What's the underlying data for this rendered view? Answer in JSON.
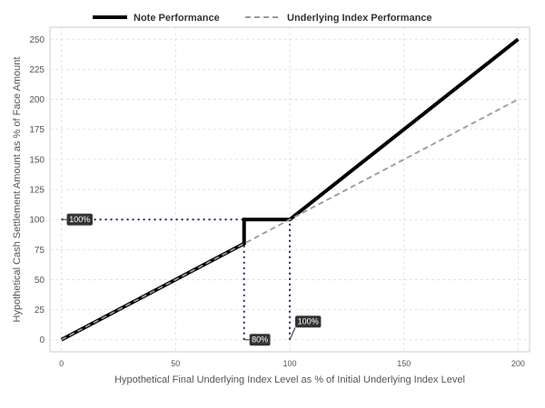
{
  "chart_data": {
    "type": "line",
    "title": "",
    "xlabel": "Hypothetical Final Underlying Index Level as % of Initial Underlying Index Level",
    "ylabel": "Hypothetical Cash Settlement Amount as % of Face Amount",
    "xlim": [
      -5,
      205
    ],
    "ylim": [
      -10,
      260
    ],
    "xticks": [
      0,
      50,
      100,
      150,
      200
    ],
    "yticks": [
      0,
      25,
      50,
      75,
      100,
      125,
      150,
      175,
      200,
      225,
      250
    ],
    "grid": true,
    "legend_position": "top",
    "series": [
      {
        "name": "Note Performance",
        "style": "solid",
        "color": "#000000",
        "x": [
          0,
          80,
          80,
          100,
          200
        ],
        "y": [
          0,
          80,
          100,
          100,
          250
        ]
      },
      {
        "name": "Underlying Index Performance",
        "style": "dashed",
        "color": "#999999",
        "x": [
          0,
          200
        ],
        "y": [
          0,
          200
        ]
      }
    ],
    "reference_lines": [
      {
        "x": [
          0,
          80
        ],
        "y": [
          100,
          100
        ]
      },
      {
        "x": [
          80,
          80
        ],
        "y": [
          0,
          100
        ]
      },
      {
        "x": [
          100,
          100
        ],
        "y": [
          0,
          100
        ]
      }
    ],
    "annotations": [
      {
        "text": "100%",
        "x": 0,
        "y": 100
      },
      {
        "text": "80%",
        "x": 80,
        "y": 0
      },
      {
        "text": "100%",
        "x": 100,
        "y": 0
      }
    ],
    "colors": {
      "reference": "#1f2a5a",
      "callout_bg": "#333333",
      "grid": "#dddddd"
    }
  }
}
